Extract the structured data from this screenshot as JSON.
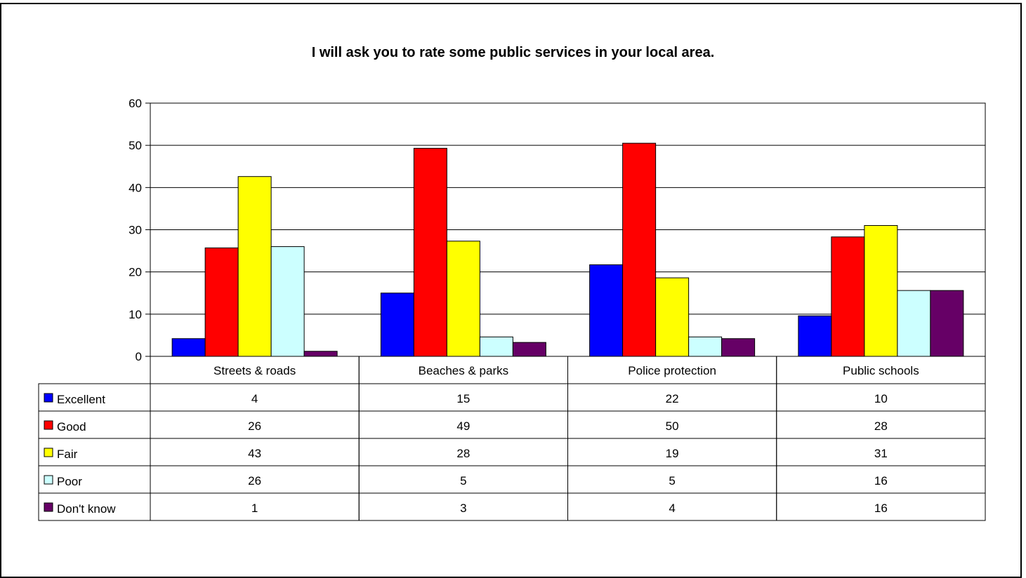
{
  "chart_data": {
    "type": "bar",
    "title": "I will ask you to rate some public services in your local area.",
    "categories": [
      "Streets & roads",
      "Beaches & parks",
      "Police protection",
      "Public schools"
    ],
    "series": [
      {
        "name": "Excellent",
        "color": "#0000FF",
        "values": [
          4,
          15,
          22,
          10
        ],
        "plotted": [
          4.2,
          15.0,
          21.7,
          9.6
        ]
      },
      {
        "name": "Good",
        "color": "#FF0000",
        "values": [
          26,
          49,
          50,
          28
        ],
        "plotted": [
          25.7,
          49.3,
          50.5,
          28.3
        ]
      },
      {
        "name": "Fair",
        "color": "#FFFF00",
        "values": [
          43,
          28,
          19,
          31
        ],
        "plotted": [
          42.6,
          27.3,
          18.6,
          31.0
        ]
      },
      {
        "name": "Poor",
        "color": "#CCFFFF",
        "values": [
          26,
          5,
          5,
          16
        ],
        "plotted": [
          26.0,
          4.6,
          4.6,
          15.6
        ]
      },
      {
        "name": "Don't know",
        "color": "#660066",
        "values": [
          1,
          3,
          4,
          16
        ],
        "plotted": [
          1.2,
          3.3,
          4.2,
          15.6
        ]
      }
    ],
    "ylim": [
      0,
      60
    ],
    "yticks": [
      0,
      10,
      20,
      30,
      40,
      50,
      60
    ],
    "grid": true,
    "legend": "data-table"
  }
}
